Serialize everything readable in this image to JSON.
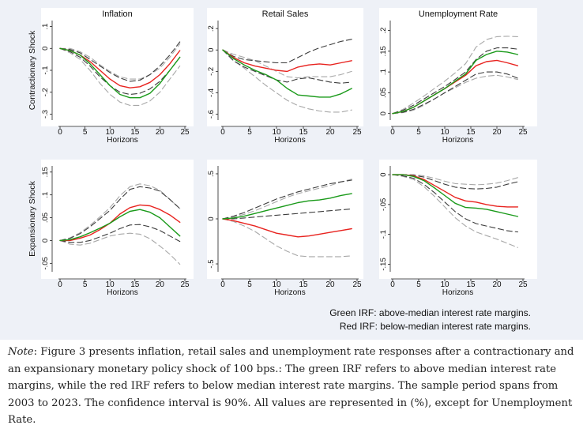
{
  "figure": {
    "row_labels": [
      "Contractionary Shock",
      "Expansionary Shock"
    ],
    "col_titles": [
      "Inflation",
      "Retail Sales",
      "Unemployment Rate"
    ],
    "legend": {
      "green": "Green IRF: above-median interest rate margins.",
      "red": "Red IRF: below-median interest rate margins."
    },
    "colors": {
      "green": "#1a9a1a",
      "red": "#e8231f",
      "ci": "#3c3c3c",
      "ci_light": "#a8a8a8",
      "panel_bg": "#ffffff",
      "figure_bg": "#eef1f7"
    }
  },
  "note": {
    "lead": "Note",
    "text": ": Figure 3 presents inflation, retail sales and unemployment rate responses after a contractionary and an expansionary monetary policy shock of 100 bps.: The green IRF refers to above median interest rate margins, while the red IRF refers to below median interest rate margins. The sample period spans from 2003 to 2023. The confidence interval is 90%. All values are represented in (%), except for Unemployment Rate."
  },
  "chart_data": [
    {
      "type": "line",
      "title": "Inflation",
      "row": "Contractionary Shock",
      "xlabel": "Horizons",
      "xlim": [
        0,
        25
      ],
      "xticks": [
        0,
        5,
        10,
        15,
        20,
        25
      ],
      "ylim": [
        -0.32,
        0.12
      ],
      "yticks": [
        0.1,
        0,
        -0.1,
        -0.2,
        -0.3
      ],
      "ytick_labels": [
        ".1",
        "0",
        "-.1",
        "-.2",
        "-.3"
      ],
      "x": [
        0,
        2,
        4,
        6,
        8,
        10,
        12,
        14,
        16,
        18,
        20,
        22,
        24
      ],
      "series": [
        {
          "color": "green",
          "values": [
            0,
            -0.01,
            -0.03,
            -0.07,
            -0.12,
            -0.17,
            -0.21,
            -0.225,
            -0.225,
            -0.205,
            -0.16,
            -0.1,
            -0.04
          ]
        },
        {
          "color": "red",
          "values": [
            0,
            -0.01,
            -0.03,
            -0.06,
            -0.1,
            -0.14,
            -0.17,
            -0.18,
            -0.175,
            -0.155,
            -0.12,
            -0.07,
            -0.01
          ]
        },
        {
          "color": "ci",
          "values": [
            0,
            -0.005,
            -0.02,
            -0.05,
            -0.08,
            -0.11,
            -0.135,
            -0.15,
            -0.145,
            -0.12,
            -0.08,
            -0.03,
            0.03
          ]
        },
        {
          "color": "ci",
          "values": [
            0,
            -0.015,
            -0.04,
            -0.08,
            -0.13,
            -0.17,
            -0.2,
            -0.21,
            -0.205,
            -0.185,
            -0.15,
            -0.1,
            -0.04
          ]
        },
        {
          "color": "ci_light",
          "values": [
            0,
            0,
            -0.015,
            -0.04,
            -0.075,
            -0.105,
            -0.13,
            -0.14,
            -0.14,
            -0.12,
            -0.09,
            -0.04,
            0.02
          ]
        },
        {
          "color": "ci_light",
          "values": [
            0,
            -0.02,
            -0.05,
            -0.1,
            -0.16,
            -0.21,
            -0.245,
            -0.26,
            -0.26,
            -0.24,
            -0.2,
            -0.14,
            -0.08
          ]
        }
      ]
    },
    {
      "type": "line",
      "title": "Retail Sales",
      "row": "Contractionary Shock",
      "xlabel": "Horizons",
      "xlim": [
        0,
        25
      ],
      "xticks": [
        0,
        5,
        10,
        15,
        20,
        25
      ],
      "ylim": [
        -0.64,
        0.26
      ],
      "yticks": [
        0.2,
        0,
        -0.2,
        -0.4,
        -0.6
      ],
      "ytick_labels": [
        ".2",
        "0",
        "-.2",
        "-.4",
        "-.6"
      ],
      "x": [
        0,
        2,
        4,
        6,
        8,
        10,
        12,
        14,
        16,
        18,
        20,
        22,
        24
      ],
      "series": [
        {
          "color": "green",
          "values": [
            0,
            -0.08,
            -0.14,
            -0.19,
            -0.23,
            -0.28,
            -0.36,
            -0.42,
            -0.43,
            -0.44,
            -0.44,
            -0.41,
            -0.36
          ]
        },
        {
          "color": "red",
          "values": [
            0,
            -0.07,
            -0.12,
            -0.15,
            -0.17,
            -0.19,
            -0.2,
            -0.16,
            -0.14,
            -0.13,
            -0.14,
            -0.12,
            -0.1
          ]
        },
        {
          "color": "ci",
          "values": [
            0,
            -0.06,
            -0.09,
            -0.1,
            -0.11,
            -0.12,
            -0.12,
            -0.07,
            -0.02,
            0.02,
            0.05,
            0.08,
            0.1
          ]
        },
        {
          "color": "ci",
          "values": [
            0,
            -0.1,
            -0.16,
            -0.2,
            -0.24,
            -0.28,
            -0.3,
            -0.27,
            -0.26,
            -0.28,
            -0.3,
            -0.31,
            -0.3
          ]
        },
        {
          "color": "ci_light",
          "values": [
            0,
            -0.04,
            -0.07,
            -0.1,
            -0.15,
            -0.2,
            -0.25,
            -0.26,
            -0.25,
            -0.25,
            -0.25,
            -0.23,
            -0.2
          ]
        },
        {
          "color": "ci_light",
          "values": [
            0,
            -0.1,
            -0.17,
            -0.25,
            -0.33,
            -0.4,
            -0.47,
            -0.52,
            -0.55,
            -0.57,
            -0.58,
            -0.58,
            -0.56
          ]
        }
      ]
    },
    {
      "type": "line",
      "title": "Unemployment Rate",
      "row": "Contractionary Shock",
      "xlabel": "Horizons",
      "xlim": [
        0,
        25
      ],
      "xticks": [
        0,
        5,
        10,
        15,
        20,
        25
      ],
      "ylim": [
        -0.012,
        0.22
      ],
      "yticks": [
        0.2,
        0.15,
        0.1,
        0.05,
        0
      ],
      "ytick_labels": [
        ".2",
        ".15",
        ".1",
        ".05",
        "0"
      ],
      "x": [
        0,
        2,
        4,
        6,
        8,
        10,
        12,
        14,
        16,
        18,
        20,
        22,
        24
      ],
      "series": [
        {
          "color": "green",
          "values": [
            0,
            0.005,
            0.015,
            0.03,
            0.045,
            0.06,
            0.078,
            0.095,
            0.128,
            0.142,
            0.15,
            0.148,
            0.142
          ]
        },
        {
          "color": "red",
          "values": [
            0,
            0.005,
            0.015,
            0.03,
            0.045,
            0.06,
            0.076,
            0.092,
            0.115,
            0.125,
            0.128,
            0.122,
            0.115
          ]
        },
        {
          "color": "ci",
          "values": [
            0,
            0.008,
            0.02,
            0.035,
            0.05,
            0.065,
            0.082,
            0.1,
            0.13,
            0.15,
            0.158,
            0.158,
            0.155
          ]
        },
        {
          "color": "ci",
          "values": [
            0,
            0.003,
            0.01,
            0.022,
            0.035,
            0.05,
            0.065,
            0.08,
            0.095,
            0.1,
            0.1,
            0.095,
            0.085
          ]
        },
        {
          "color": "ci_light",
          "values": [
            0,
            0.01,
            0.025,
            0.042,
            0.06,
            0.078,
            0.098,
            0.12,
            0.16,
            0.178,
            0.185,
            0.186,
            0.185
          ]
        },
        {
          "color": "ci_light",
          "values": [
            0,
            0.002,
            0.008,
            0.02,
            0.035,
            0.05,
            0.062,
            0.075,
            0.085,
            0.09,
            0.092,
            0.088,
            0.082
          ]
        }
      ]
    },
    {
      "type": "line",
      "title": "",
      "row": "Expansionary Shock",
      "xlabel": "Horizons",
      "xlim": [
        0,
        25
      ],
      "xticks": [
        0,
        5,
        10,
        15,
        20,
        25
      ],
      "ylim": [
        -0.065,
        0.16
      ],
      "yticks": [
        0.15,
        0.1,
        0.05,
        0,
        -0.05
      ],
      "ytick_labels": [
        ".15",
        ".1",
        ".05",
        "0",
        "-.05"
      ],
      "x": [
        0,
        2,
        4,
        6,
        8,
        10,
        12,
        14,
        16,
        18,
        20,
        22,
        24
      ],
      "series": [
        {
          "color": "green",
          "values": [
            0,
            0.002,
            0.008,
            0.017,
            0.027,
            0.038,
            0.052,
            0.064,
            0.068,
            0.062,
            0.05,
            0.03,
            0.01
          ]
        },
        {
          "color": "red",
          "values": [
            0,
            0,
            0.005,
            0.012,
            0.024,
            0.038,
            0.058,
            0.072,
            0.078,
            0.076,
            0.068,
            0.056,
            0.04
          ]
        },
        {
          "color": "ci",
          "values": [
            0,
            0.005,
            0.015,
            0.03,
            0.048,
            0.066,
            0.09,
            0.112,
            0.118,
            0.115,
            0.108,
            0.09,
            0.07
          ]
        },
        {
          "color": "ci",
          "values": [
            0,
            -0.004,
            -0.004,
            0,
            0.008,
            0.016,
            0.026,
            0.034,
            0.035,
            0.03,
            0.022,
            0.01,
            -0.002
          ]
        },
        {
          "color": "ci_light",
          "values": [
            0,
            0.006,
            0.017,
            0.033,
            0.052,
            0.072,
            0.098,
            0.118,
            0.124,
            0.12,
            0.11,
            0.09,
            0.07
          ]
        },
        {
          "color": "ci_light",
          "values": [
            0,
            -0.008,
            -0.01,
            -0.006,
            0.002,
            0.01,
            0.014,
            0.016,
            0.014,
            0.004,
            -0.012,
            -0.03,
            -0.052
          ]
        }
      ]
    },
    {
      "type": "line",
      "title": "",
      "row": "Expansionary Shock",
      "xlabel": "Horizons",
      "xlim": [
        0,
        25
      ],
      "xticks": [
        0,
        5,
        10,
        15,
        20,
        25
      ],
      "ylim": [
        -0.57,
        0.57
      ],
      "yticks": [
        0.5,
        0,
        -0.5
      ],
      "ytick_labels": [
        ".5",
        "0",
        "-.5"
      ],
      "x": [
        0,
        2,
        4,
        6,
        8,
        10,
        12,
        14,
        16,
        18,
        20,
        22,
        24
      ],
      "series": [
        {
          "color": "green",
          "values": [
            0,
            0.01,
            0.03,
            0.06,
            0.09,
            0.12,
            0.15,
            0.18,
            0.2,
            0.21,
            0.23,
            0.26,
            0.28
          ]
        },
        {
          "color": "red",
          "values": [
            0,
            -0.02,
            -0.05,
            -0.08,
            -0.12,
            -0.16,
            -0.18,
            -0.2,
            -0.19,
            -0.17,
            -0.15,
            -0.13,
            -0.11
          ]
        },
        {
          "color": "ci",
          "values": [
            0,
            0.03,
            0.07,
            0.12,
            0.17,
            0.22,
            0.26,
            0.3,
            0.33,
            0.36,
            0.39,
            0.41,
            0.43
          ]
        },
        {
          "color": "ci",
          "values": [
            0,
            0,
            0.01,
            0.02,
            0.03,
            0.04,
            0.05,
            0.06,
            0.07,
            0.08,
            0.09,
            0.1,
            0.11
          ]
        },
        {
          "color": "ci_light",
          "values": [
            0,
            0.02,
            0.05,
            0.09,
            0.14,
            0.19,
            0.24,
            0.28,
            0.31,
            0.34,
            0.37,
            0.41,
            0.44
          ]
        },
        {
          "color": "ci_light",
          "values": [
            0,
            -0.03,
            -0.08,
            -0.14,
            -0.22,
            -0.3,
            -0.36,
            -0.41,
            -0.42,
            -0.42,
            -0.42,
            -0.42,
            -0.41
          ]
        }
      ]
    },
    {
      "type": "line",
      "title": "",
      "row": "Expansionary Shock",
      "xlabel": "Horizons",
      "xlim": [
        0,
        25
      ],
      "xticks": [
        0,
        5,
        10,
        15,
        20,
        25
      ],
      "ylim": [
        -0.16,
        0.012
      ],
      "yticks": [
        0,
        -0.05,
        -0.1,
        -0.15
      ],
      "ytick_labels": [
        "0",
        "-.05",
        "-.1",
        "-.15"
      ],
      "x": [
        0,
        2,
        4,
        6,
        8,
        10,
        12,
        14,
        16,
        18,
        20,
        22,
        24
      ],
      "series": [
        {
          "color": "green",
          "values": [
            0,
            0,
            -0.003,
            -0.01,
            -0.022,
            -0.035,
            -0.048,
            -0.055,
            -0.056,
            -0.058,
            -0.062,
            -0.066,
            -0.07
          ]
        },
        {
          "color": "red",
          "values": [
            0,
            0,
            -0.002,
            -0.008,
            -0.018,
            -0.028,
            -0.038,
            -0.044,
            -0.046,
            -0.05,
            -0.053,
            -0.054,
            -0.054
          ]
        },
        {
          "color": "ci",
          "values": [
            0,
            0,
            -0.001,
            -0.004,
            -0.01,
            -0.016,
            -0.021,
            -0.023,
            -0.024,
            -0.023,
            -0.021,
            -0.016,
            -0.012
          ]
        },
        {
          "color": "ci",
          "values": [
            0,
            -0.002,
            -0.006,
            -0.016,
            -0.03,
            -0.046,
            -0.062,
            -0.074,
            -0.082,
            -0.086,
            -0.09,
            -0.094,
            -0.096
          ]
        },
        {
          "color": "ci_light",
          "values": [
            0,
            0,
            0,
            -0.002,
            -0.006,
            -0.011,
            -0.015,
            -0.016,
            -0.017,
            -0.016,
            -0.014,
            -0.01,
            -0.005
          ]
        },
        {
          "color": "ci_light",
          "values": [
            0,
            -0.003,
            -0.008,
            -0.02,
            -0.036,
            -0.054,
            -0.072,
            -0.086,
            -0.096,
            -0.102,
            -0.108,
            -0.115,
            -0.122
          ]
        }
      ]
    }
  ]
}
